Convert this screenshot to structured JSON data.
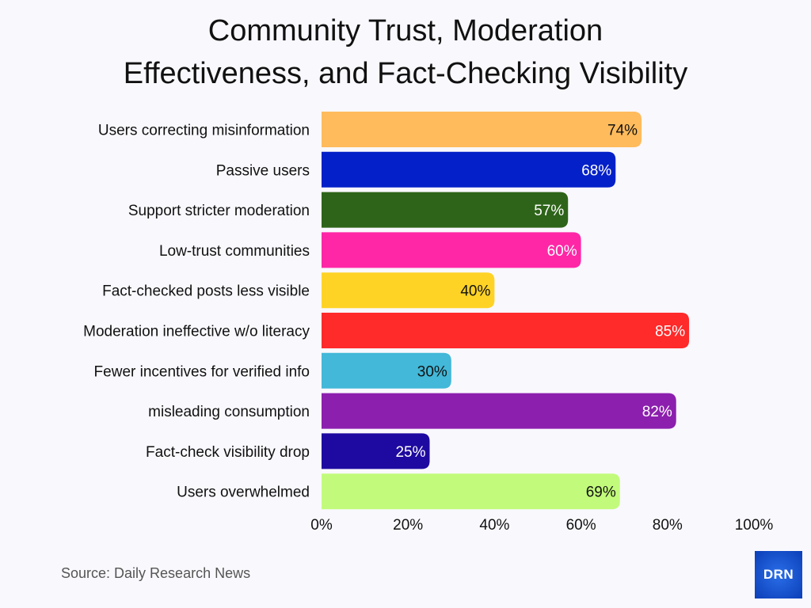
{
  "chart_data": {
    "type": "bar",
    "orientation": "horizontal",
    "title_lines": [
      "Community Trust, Moderation",
      "Effectiveness, and Fact-Checking Visibility"
    ],
    "categories": [
      "Users correcting misinformation",
      "Passive users",
      "Support stricter moderation",
      "Low-trust communities",
      "Fact-checked posts less visible",
      "Moderation ineffective w/o literacy",
      "Fewer incentives for verified info",
      "misleading consumption",
      "Fact-check visibility drop",
      "Users overwhelmed"
    ],
    "values": [
      74,
      68,
      57,
      60,
      40,
      85,
      30,
      82,
      25,
      69
    ],
    "data_labels": [
      "74%",
      "68%",
      "57%",
      "60%",
      "40%",
      "85%",
      "30%",
      "82%",
      "25%",
      "69%"
    ],
    "colors": [
      "#ffbb5c",
      "#0420c8",
      "#2e6419",
      "#ff27a6",
      "#ffd326",
      "#ff2a2a",
      "#43b8d8",
      "#8c1fae",
      "#1e0aa0",
      "#c2fb7b"
    ],
    "label_colors": [
      "#111111",
      "#ffffff",
      "#ffffff",
      "#ffffff",
      "#111111",
      "#ffffff",
      "#111111",
      "#ffffff",
      "#ffffff",
      "#111111"
    ],
    "x_ticks": [
      "0%",
      "20%",
      "40%",
      "60%",
      "80%",
      "100%"
    ],
    "x_tick_values": [
      0,
      20,
      40,
      60,
      80,
      100
    ],
    "xlim": [
      0,
      100
    ],
    "grid": false,
    "legend": "none"
  },
  "source": "Source: Daily Research News",
  "logo_text": "DRN"
}
